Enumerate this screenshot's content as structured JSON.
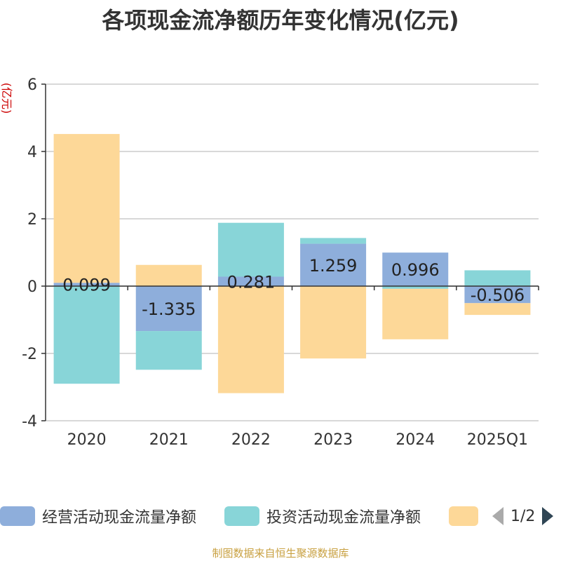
{
  "chart_data": {
    "type": "bar",
    "stacked": true,
    "title": "各项现金流净额历年变化情况(亿元)",
    "ylabel": "(亿元)",
    "xlabel": "",
    "ylim": [
      -4,
      6
    ],
    "yticks": [
      -4,
      -2,
      0,
      2,
      4,
      6
    ],
    "grid": true,
    "categories": [
      "2020",
      "2021",
      "2022",
      "2023",
      "2024",
      "2025Q1"
    ],
    "series": [
      {
        "name": "经营活动现金流量净额",
        "color": "#8eaedb",
        "values": [
          0.099,
          -1.335,
          0.281,
          1.259,
          0.996,
          -0.506
        ],
        "labels": [
          "0.099",
          "-1.335",
          "0.281",
          "1.259",
          "0.996",
          "-0.506"
        ]
      },
      {
        "name": "投资活动现金流量净额",
        "color": "#88d5d8",
        "values": [
          -2.9,
          -1.15,
          1.6,
          0.17,
          -0.08,
          0.47
        ]
      },
      {
        "name": "",
        "color": "#fdd898",
        "values": [
          4.42,
          0.63,
          -3.18,
          -2.15,
          -1.5,
          -0.35
        ]
      }
    ]
  },
  "legend": {
    "items": [
      {
        "label": "经营活动现金流量净额",
        "color": "#8eaedb"
      },
      {
        "label": "投资活动现金流量净额",
        "color": "#88d5d8"
      },
      {
        "label": "",
        "color": "#fdd898"
      }
    ],
    "page": "1/2"
  },
  "source": "制图数据来自恒生聚源数据库"
}
